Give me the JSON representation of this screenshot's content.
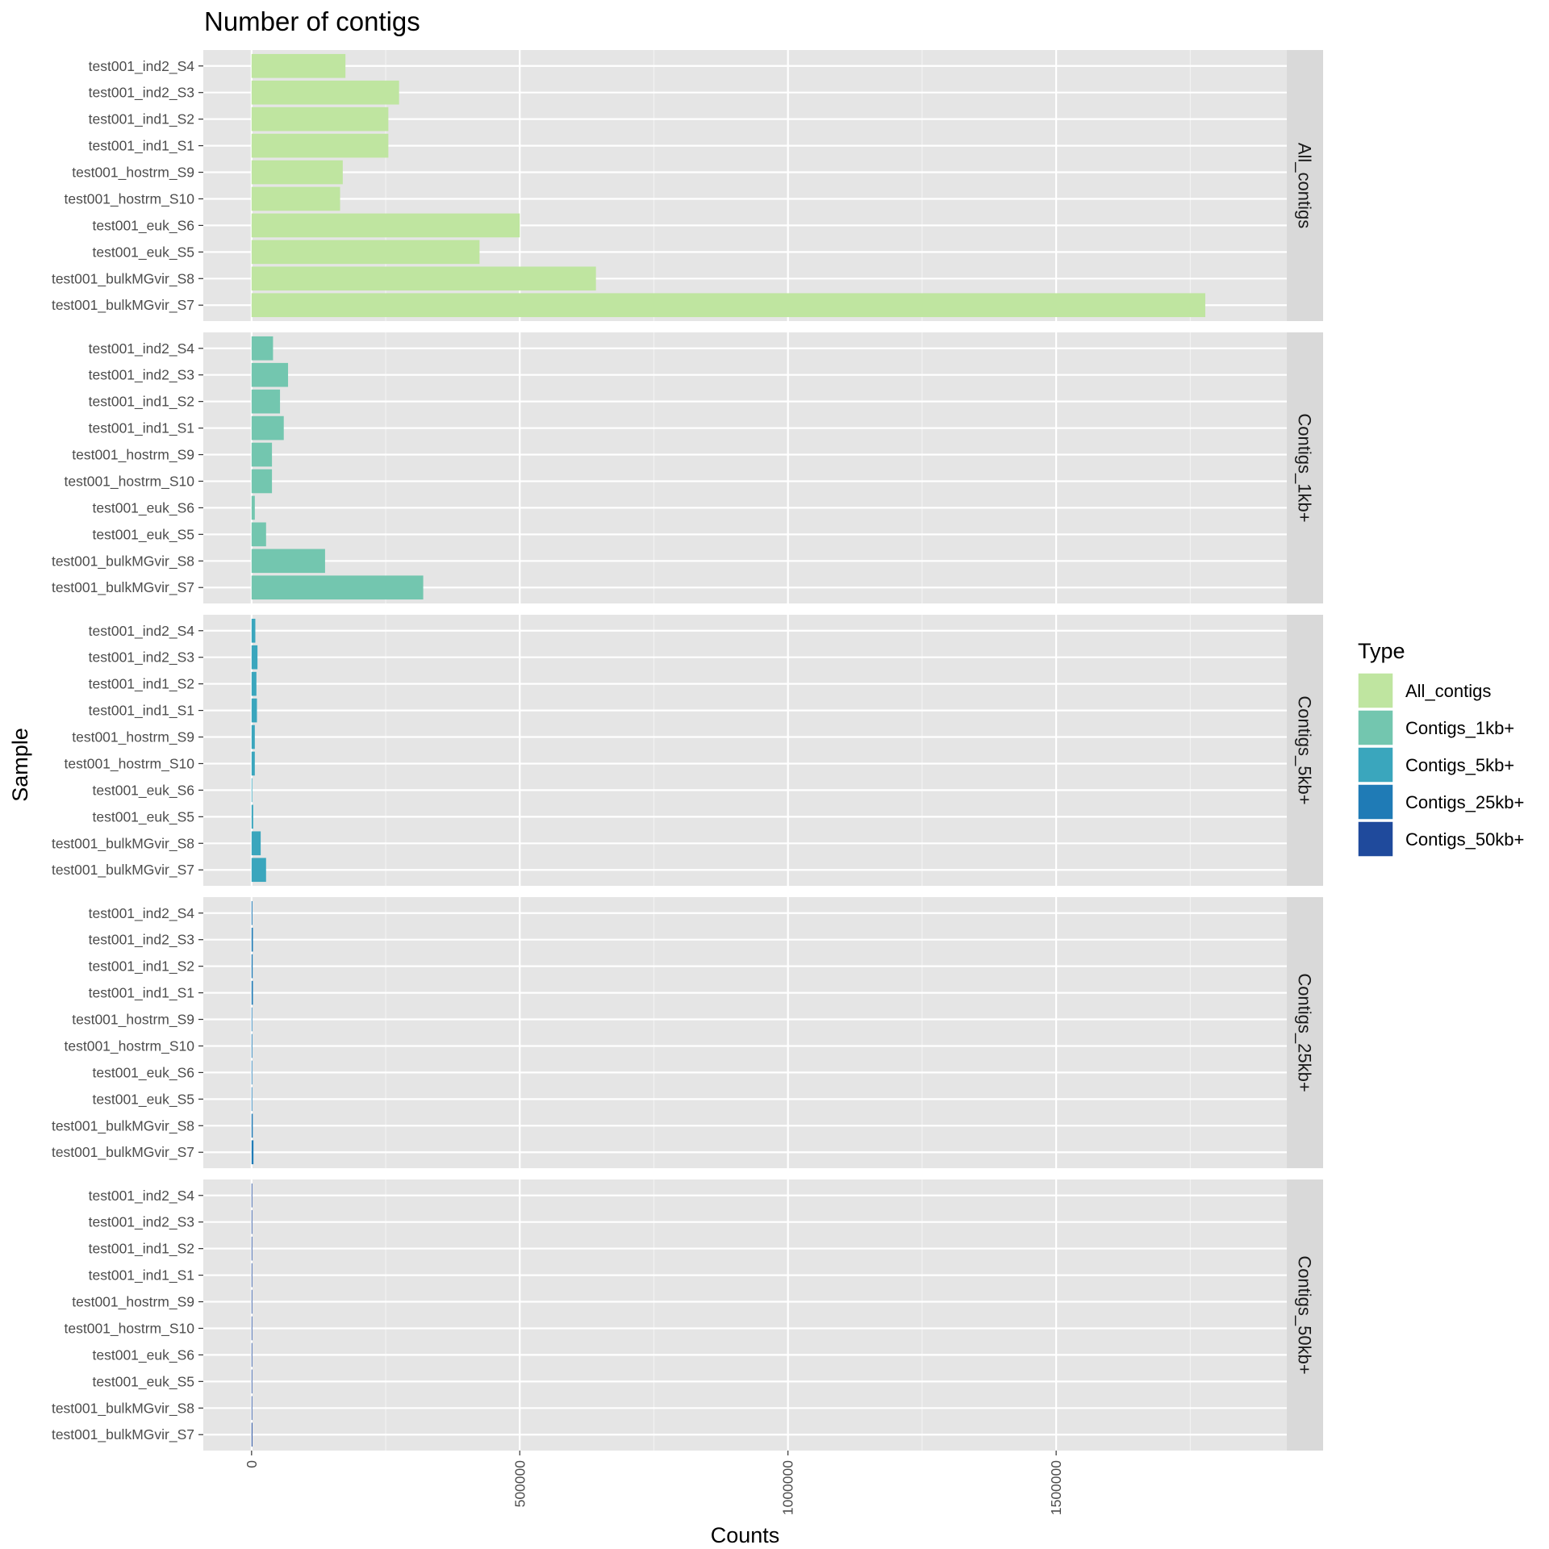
{
  "chart_data": {
    "type": "bar",
    "orientation": "horizontal",
    "faceted": true,
    "title": "Number of contigs",
    "xlabel": "Counts",
    "ylabel": "Sample",
    "xlim": [
      -90000,
      1930000
    ],
    "xticks": [
      0,
      500000,
      1000000,
      1500000
    ],
    "xtick_labels": [
      "0",
      "500000",
      "1000000",
      "1500000"
    ],
    "grid": true,
    "categories": [
      "test001_ind2_S4",
      "test001_ind2_S3",
      "test001_ind1_S2",
      "test001_ind1_S1",
      "test001_hostrm_S9",
      "test001_hostrm_S10",
      "test001_euk_S6",
      "test001_euk_S5",
      "test001_bulkMGvir_S8",
      "test001_bulkMGvir_S7"
    ],
    "series": [
      {
        "name": "All_contigs",
        "color": "#bfe5a0",
        "values": [
          175000,
          275000,
          255000,
          255000,
          170000,
          165000,
          500000,
          425000,
          642000,
          1778000
        ]
      },
      {
        "name": "Contigs_1kb+",
        "color": "#73c6af",
        "values": [
          40000,
          68000,
          53000,
          60000,
          38000,
          38000,
          6000,
          27000,
          137000,
          320000
        ]
      },
      {
        "name": "Contigs_5kb+",
        "color": "#3aa6bd",
        "values": [
          7000,
          11000,
          9000,
          10000,
          6000,
          6000,
          500,
          3000,
          17000,
          27000
        ]
      },
      {
        "name": "Contigs_25kb+",
        "color": "#1f7bb6",
        "values": [
          1500,
          2500,
          2000,
          2500,
          1200,
          1300,
          100,
          400,
          2200,
          3500
        ]
      },
      {
        "name": "Contigs_50kb+",
        "color": "#1f4a9c",
        "values": [
          600,
          900,
          800,
          900,
          300,
          400,
          40,
          100,
          900,
          1500
        ]
      }
    ],
    "legend": {
      "title": "Type",
      "position": "right"
    }
  }
}
